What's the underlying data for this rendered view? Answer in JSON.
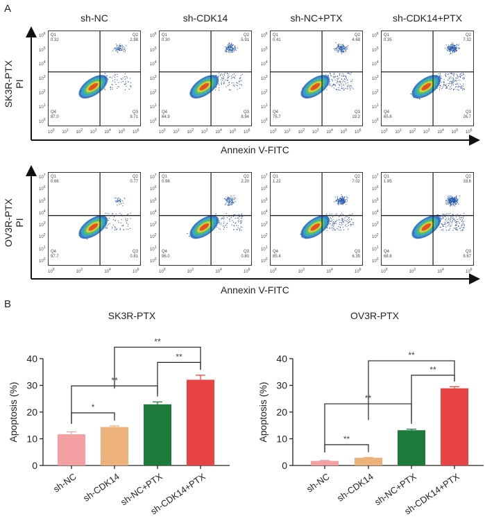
{
  "panel_labels": {
    "a": "A",
    "b": "B"
  },
  "flow": {
    "groups": [
      "sh-NC",
      "sh-CDK14",
      "sh-NC+PTX",
      "sh-CDK14+PTX"
    ],
    "x_axis_label": "Annexin V-FITC",
    "y_axis_label": "PI",
    "quadrant_names": [
      "Q1",
      "Q2",
      "Q3",
      "Q4"
    ],
    "tick_base": "10",
    "rows": [
      {
        "cell_line": "SK3R-PTX",
        "x_tick_exponents": [
          "0",
          "1",
          "2",
          "3",
          "4",
          "5",
          "6"
        ],
        "y_tick_exponents": [
          "0",
          "1",
          "2",
          "3",
          "4",
          "5",
          "6"
        ],
        "plots": [
          {
            "Q1": "0.32",
            "Q2": "2.98",
            "Q3": "9.71",
            "Q4": "87.0"
          },
          {
            "Q1": "0.30",
            "Q2": "5.91",
            "Q3": "8.94",
            "Q4": "84.9"
          },
          {
            "Q1": "0.41",
            "Q2": "4.68",
            "Q3": "19.2",
            "Q4": "75.7"
          },
          {
            "Q1": "0.35",
            "Q2": "7.32",
            "Q3": "26.7",
            "Q4": "65.6"
          }
        ]
      },
      {
        "cell_line": "OV3R-PTX",
        "x_tick_exponents": [
          "0",
          "2",
          "4",
          "6"
        ],
        "y_tick_exponents": [
          "0",
          "1",
          "2",
          "3",
          "4",
          "5",
          "6",
          "7"
        ],
        "plots": [
          {
            "Q1": "0.66",
            "Q2": "0.77",
            "Q3": "0.81",
            "Q4": "97.7"
          },
          {
            "Q1": "0.98",
            "Q2": "2.20",
            "Q3": "0.80",
            "Q4": "96.0"
          },
          {
            "Q1": "1.22",
            "Q2": "7.02",
            "Q3": "6.35",
            "Q4": "85.4"
          },
          {
            "Q1": "1.95",
            "Q2": "19.6",
            "Q3": "9.67",
            "Q4": "68.8"
          }
        ]
      }
    ]
  },
  "chart_data": [
    {
      "type": "bar",
      "title": "SK3R-PTX",
      "ylabel": "Apoptosis (%)",
      "xlabel": "",
      "categories": [
        "sh-NC",
        "sh-CDK14",
        "sh-NC+PTX",
        "sh-CDK14+PTX"
      ],
      "values": [
        11.7,
        14.4,
        22.9,
        32.1
      ],
      "error_upper": [
        12.6,
        14.8,
        23.8,
        33.8
      ],
      "colors": [
        "#F4A0A2",
        "#EDB27C",
        "#1C7A3A",
        "#E84444"
      ],
      "ylim": [
        0,
        40
      ],
      "yticks": [
        "0",
        "10",
        "20",
        "30",
        "40"
      ],
      "grid": false,
      "comparisons": [
        {
          "from": 0,
          "to": 1,
          "label": "*",
          "y": 19.7
        },
        {
          "from": 0,
          "to": 2,
          "label": "**",
          "y": 29.8
        },
        {
          "from": 2,
          "to": 3,
          "label": "**",
          "y": 38.6
        },
        {
          "from": 1,
          "to": 3,
          "label": "**",
          "y": 44.3
        }
      ]
    },
    {
      "type": "bar",
      "title": "OV3R-PTX",
      "ylabel": "Apoptosis (%)",
      "xlabel": "",
      "categories": [
        "sh-NC",
        "sh-CDK14",
        "sh-NC+PTX",
        "sh-CDK14+PTX"
      ],
      "values": [
        1.7,
        2.9,
        13.2,
        28.9
      ],
      "error_upper": [
        1.9,
        3.0,
        13.6,
        29.5
      ],
      "colors": [
        "#F4A0A2",
        "#EDB27C",
        "#1C7A3A",
        "#E84444"
      ],
      "ylim": [
        0,
        40
      ],
      "yticks": [
        "0",
        "10",
        "20",
        "30",
        "40"
      ],
      "grid": false,
      "comparisons": [
        {
          "from": 0,
          "to": 1,
          "label": "**",
          "y": 7.8
        },
        {
          "from": 0,
          "to": 2,
          "label": "**",
          "y": 23.1
        },
        {
          "from": 2,
          "to": 3,
          "label": "**",
          "y": 33.8
        },
        {
          "from": 1,
          "to": 3,
          "label": "**",
          "y": 39.2
        }
      ]
    }
  ]
}
